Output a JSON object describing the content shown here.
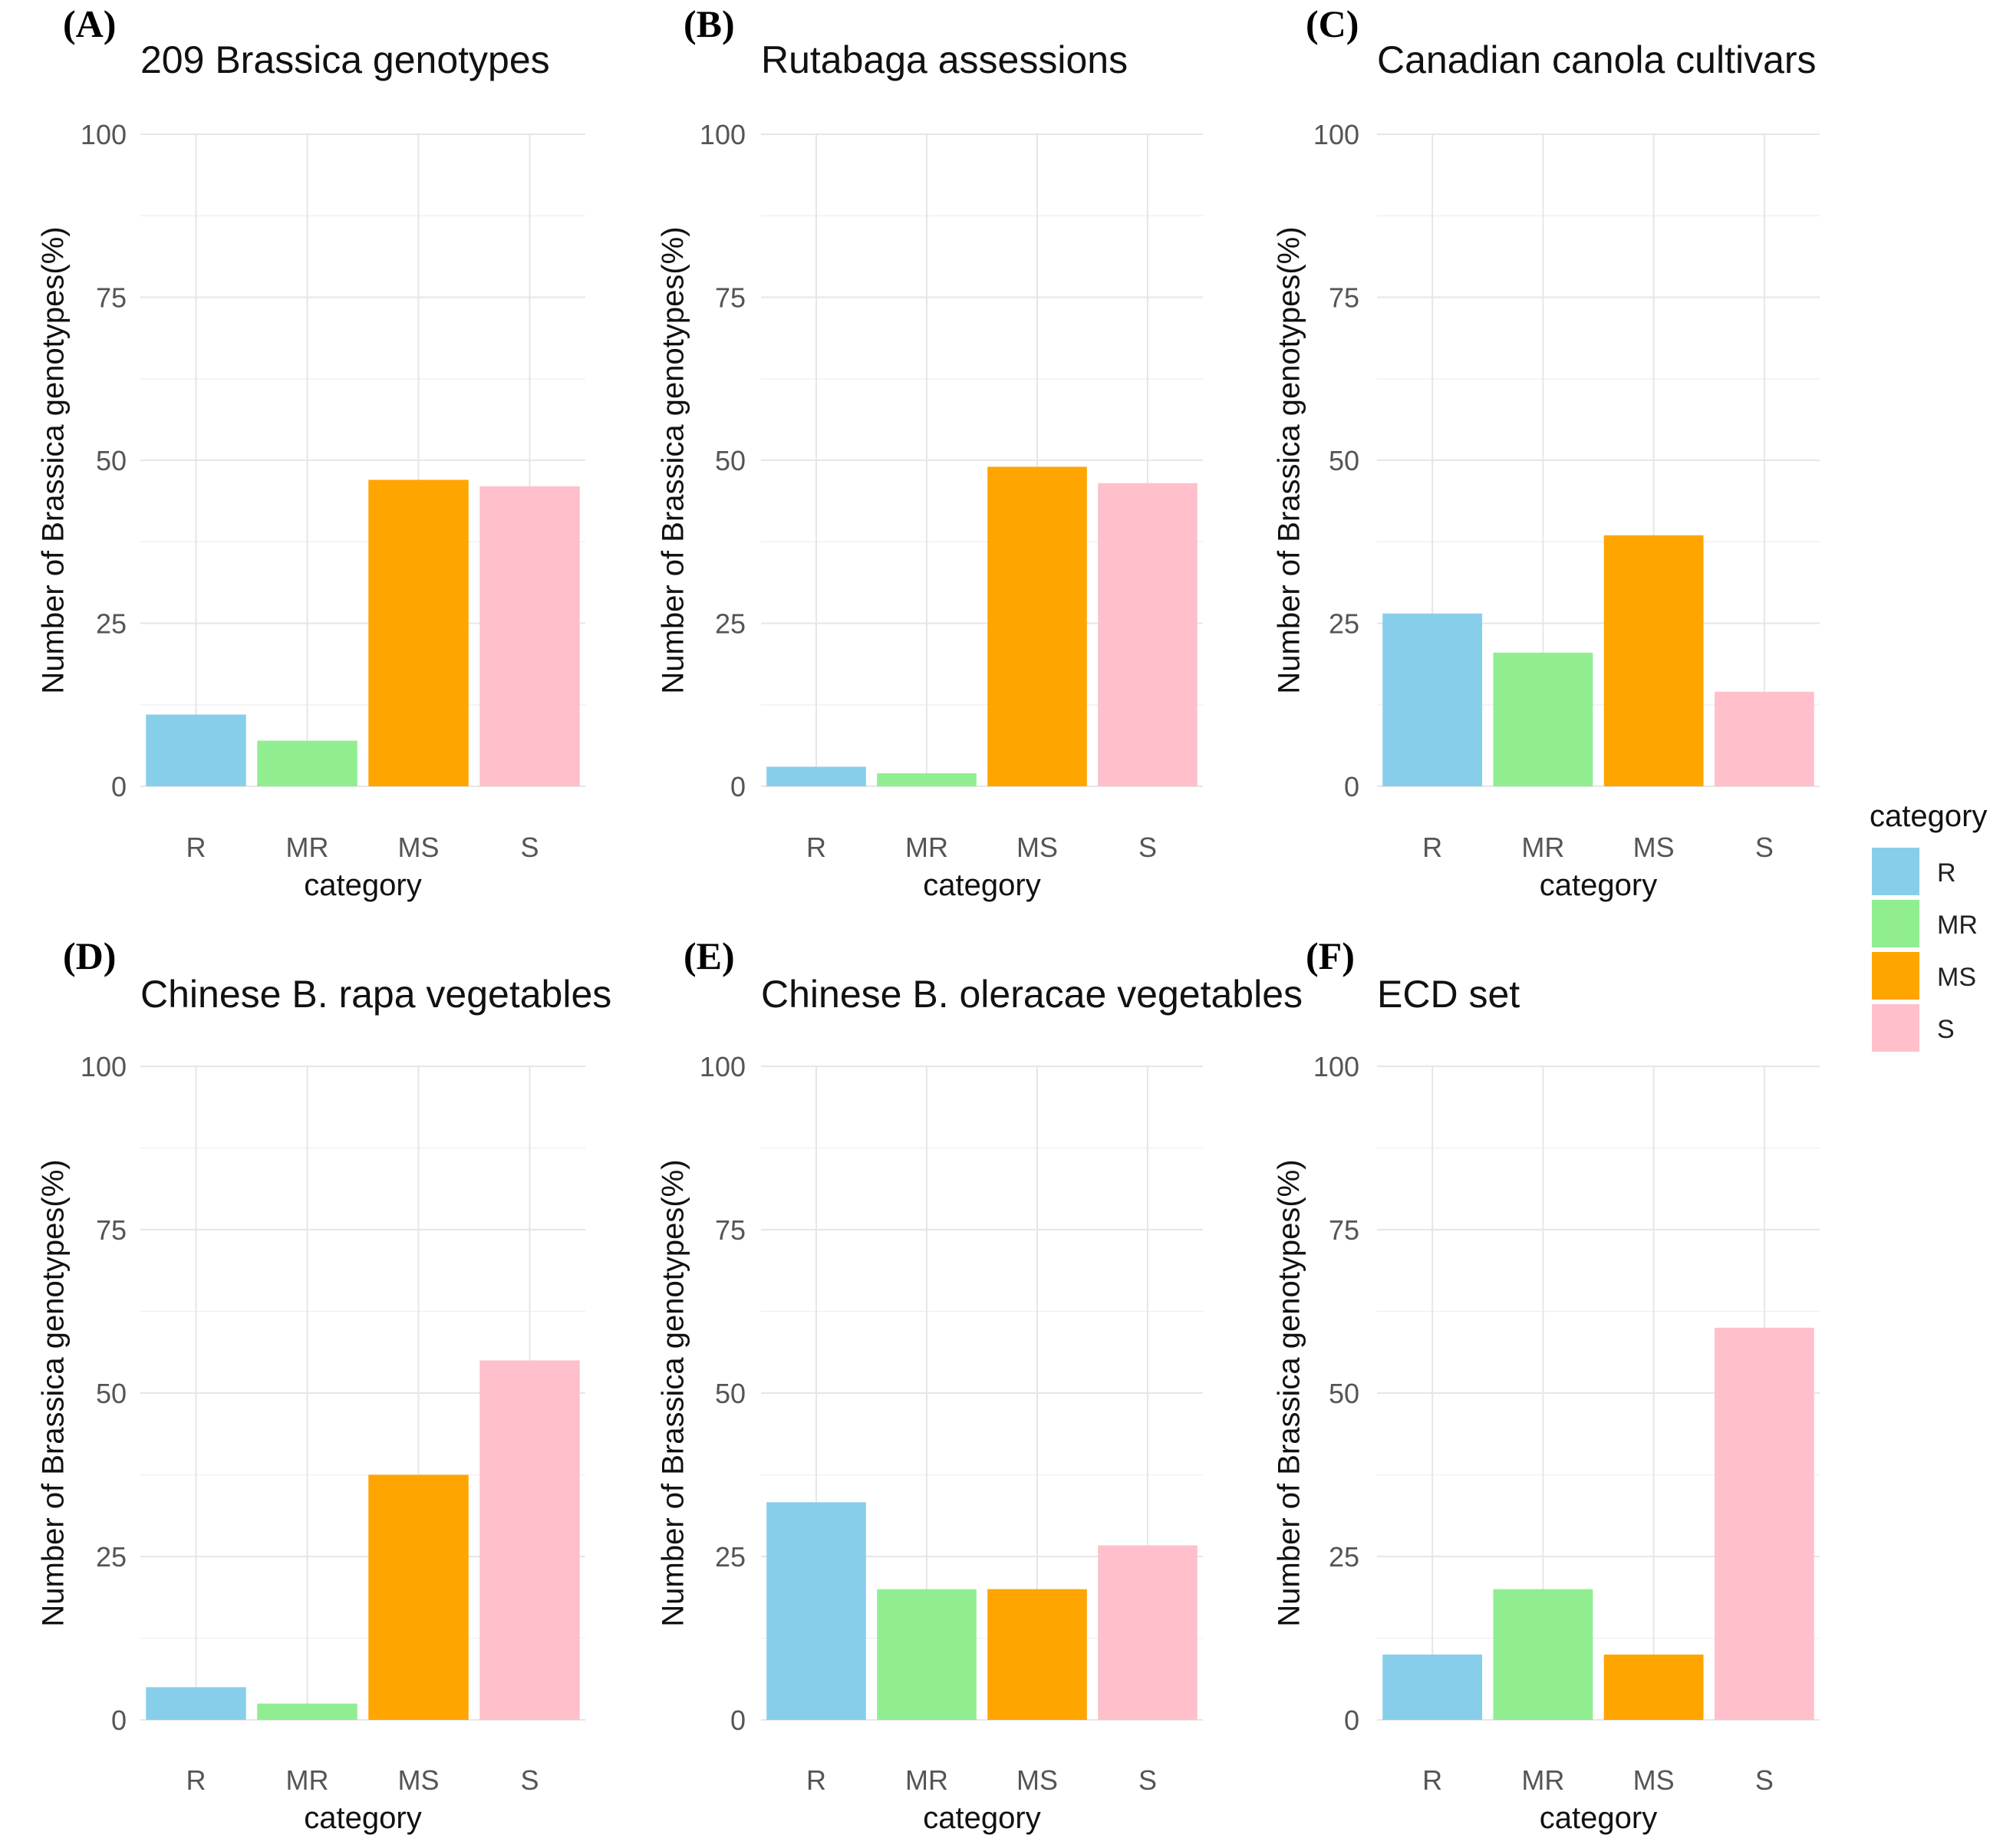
{
  "colors": {
    "R": "#87ceeb",
    "MR": "#90ee90",
    "MS": "#ffa500",
    "S": "#ffc0cb"
  },
  "legend": {
    "title": "category",
    "items": [
      {
        "key": "R",
        "label": "R"
      },
      {
        "key": "MR",
        "label": "MR"
      },
      {
        "key": "MS",
        "label": "MS"
      },
      {
        "key": "S",
        "label": "S"
      }
    ]
  },
  "chart_data": [
    {
      "panel": "(A)",
      "type": "bar",
      "title": "209 Brassica genotypes",
      "categories": [
        "R",
        "MR",
        "MS",
        "S"
      ],
      "values": [
        11,
        7,
        47,
        46
      ],
      "xlabel": "category",
      "ylabel": "Number of Brassica genotypes(%)",
      "ylim": [
        0,
        100
      ],
      "yticks": [
        0,
        25,
        50,
        75,
        100
      ]
    },
    {
      "panel": "(B)",
      "type": "bar",
      "title": "Rutabaga assessions",
      "categories": [
        "R",
        "MR",
        "MS",
        "S"
      ],
      "values": [
        3,
        2,
        49,
        46.5
      ],
      "xlabel": "category",
      "ylabel": "Number of Brassica genotypes(%)",
      "ylim": [
        0,
        100
      ],
      "yticks": [
        0,
        25,
        50,
        75,
        100
      ]
    },
    {
      "panel": "(C)",
      "type": "bar",
      "title": "Canadian canola cultivars",
      "categories": [
        "R",
        "MR",
        "MS",
        "S"
      ],
      "values": [
        26.5,
        20.5,
        38.5,
        14.5
      ],
      "xlabel": "category",
      "ylabel": "Number of Brassica genotypes(%)",
      "ylim": [
        0,
        100
      ],
      "yticks": [
        0,
        25,
        50,
        75,
        100
      ]
    },
    {
      "panel": "(D)",
      "type": "bar",
      "title": "Chinese B. rapa vegetables",
      "categories": [
        "R",
        "MR",
        "MS",
        "S"
      ],
      "values": [
        5,
        2.5,
        37.5,
        55
      ],
      "xlabel": "category",
      "ylabel": "Number of Brassica genotypes(%)",
      "ylim": [
        0,
        100
      ],
      "yticks": [
        0,
        25,
        50,
        75,
        100
      ]
    },
    {
      "panel": "(E)",
      "type": "bar",
      "title": "Chinese B. oleracae vegetables",
      "categories": [
        "R",
        "MR",
        "MS",
        "S"
      ],
      "values": [
        33.3,
        20,
        20,
        26.7
      ],
      "xlabel": "category",
      "ylabel": "Number of Brassica genotypes(%)",
      "ylim": [
        0,
        100
      ],
      "yticks": [
        0,
        25,
        50,
        75,
        100
      ]
    },
    {
      "panel": "(F)",
      "type": "bar",
      "title": "ECD set",
      "categories": [
        "R",
        "MR",
        "MS",
        "S"
      ],
      "values": [
        10,
        20,
        10,
        60
      ],
      "xlabel": "category",
      "ylabel": "Number of Brassica genotypes(%)",
      "ylim": [
        0,
        100
      ],
      "yticks": [
        0,
        25,
        50,
        75,
        100
      ]
    }
  ]
}
